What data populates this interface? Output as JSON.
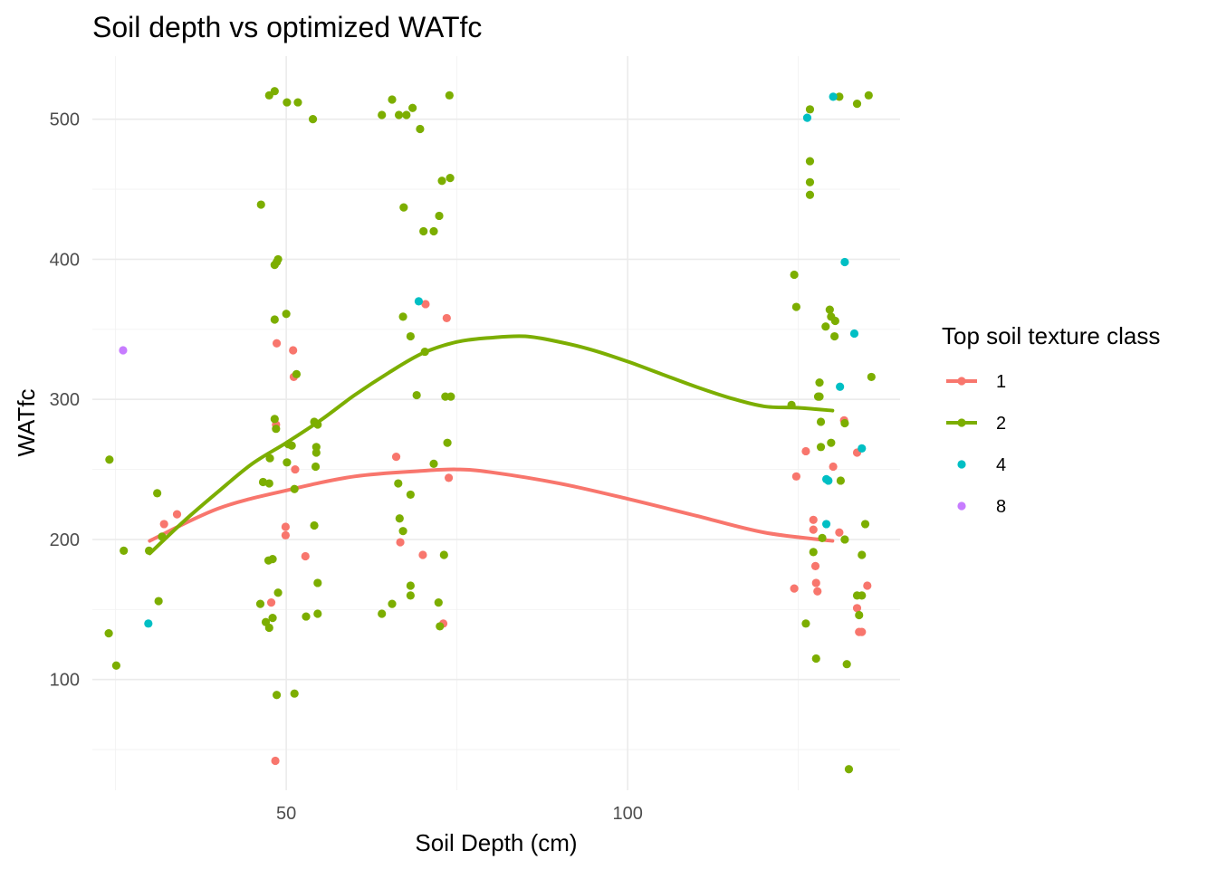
{
  "chart_data": {
    "type": "scatter",
    "title": "Soil depth vs optimized WATfc",
    "xlabel": "Soil Depth (cm)",
    "ylabel": "WATfc",
    "xlim": [
      21.6,
      139.9
    ],
    "ylim": [
      21,
      545
    ],
    "x_ticks": [
      50,
      100
    ],
    "x_minor_ticks": [
      25,
      75,
      125
    ],
    "y_ticks": [
      100,
      200,
      300,
      400,
      500
    ],
    "y_minor_ticks": [
      50,
      150,
      250,
      350,
      450
    ],
    "grid": true,
    "legend": {
      "title": "Top soil texture class",
      "placement": "right",
      "entries": [
        {
          "label": "1",
          "color": "#F8766D",
          "smooth": true
        },
        {
          "label": "2",
          "color": "#7CAE00",
          "smooth": true
        },
        {
          "label": "4",
          "color": "#00BFC4",
          "smooth": false
        },
        {
          "label": "8",
          "color": "#C77CFF",
          "smooth": false
        }
      ]
    },
    "series": [
      {
        "name": "1",
        "color": "#F8766D",
        "points": [
          [
            32.1,
            211
          ],
          [
            34.0,
            218
          ],
          [
            47.8,
            155
          ],
          [
            48.6,
            340
          ],
          [
            48.5,
            282
          ],
          [
            48.4,
            42
          ],
          [
            49.9,
            209
          ],
          [
            49.9,
            203
          ],
          [
            51.0,
            335
          ],
          [
            51.1,
            316
          ],
          [
            51.3,
            250
          ],
          [
            52.8,
            188
          ],
          [
            66.1,
            259
          ],
          [
            66.7,
            198
          ],
          [
            70.0,
            189
          ],
          [
            70.4,
            368
          ],
          [
            73.5,
            358
          ],
          [
            73.0,
            140
          ],
          [
            73.8,
            244
          ],
          [
            124.7,
            245
          ],
          [
            124.4,
            165
          ],
          [
            126.1,
            263
          ],
          [
            127.2,
            214
          ],
          [
            127.2,
            207
          ],
          [
            127.5,
            181
          ],
          [
            127.6,
            169
          ],
          [
            127.8,
            163
          ],
          [
            130.1,
            252
          ],
          [
            131.0,
            205
          ],
          [
            131.7,
            285
          ],
          [
            133.6,
            151
          ],
          [
            133.9,
            134
          ],
          [
            134.3,
            134
          ],
          [
            135.1,
            167
          ],
          [
            133.6,
            262
          ]
        ],
        "smooth": [
          [
            30,
            199
          ],
          [
            40,
            222
          ],
          [
            50,
            235
          ],
          [
            60,
            245
          ],
          [
            70,
            249
          ],
          [
            75,
            250
          ],
          [
            80,
            248
          ],
          [
            90,
            240
          ],
          [
            100,
            229
          ],
          [
            110,
            217
          ],
          [
            120,
            205
          ],
          [
            130,
            199
          ]
        ]
      },
      {
        "name": "2",
        "color": "#7CAE00",
        "points": [
          [
            24.1,
            257
          ],
          [
            24.0,
            133
          ],
          [
            25.1,
            110
          ],
          [
            26.2,
            192
          ],
          [
            29.9,
            192
          ],
          [
            31.1,
            233
          ],
          [
            31.3,
            156
          ],
          [
            31.8,
            202
          ],
          [
            46.3,
            439
          ],
          [
            47.5,
            517
          ],
          [
            48.3,
            520
          ],
          [
            48.3,
            357
          ],
          [
            48.3,
            396
          ],
          [
            48.6,
            398
          ],
          [
            48.8,
            400
          ],
          [
            46.6,
            241
          ],
          [
            47.5,
            240
          ],
          [
            47.4,
            185
          ],
          [
            48.0,
            186
          ],
          [
            48.3,
            286
          ],
          [
            48.5,
            279
          ],
          [
            48.0,
            144
          ],
          [
            47.0,
            141
          ],
          [
            47.5,
            137
          ],
          [
            48.8,
            162
          ],
          [
            46.2,
            154
          ],
          [
            48.6,
            89
          ],
          [
            50.1,
            512
          ],
          [
            50.0,
            361
          ],
          [
            50.3,
            268
          ],
          [
            50.8,
            267
          ],
          [
            51.2,
            236
          ],
          [
            51.5,
            318
          ],
          [
            50.1,
            255
          ],
          [
            51.7,
            512
          ],
          [
            47.6,
            258
          ],
          [
            51.2,
            90
          ],
          [
            52.9,
            145
          ],
          [
            53.9,
            500
          ],
          [
            54.1,
            284
          ],
          [
            54.4,
            266
          ],
          [
            54.6,
            282
          ],
          [
            54.4,
            262
          ],
          [
            54.3,
            252
          ],
          [
            54.1,
            210
          ],
          [
            54.6,
            169
          ],
          [
            54.6,
            147
          ],
          [
            64.0,
            503
          ],
          [
            65.5,
            514
          ],
          [
            66.5,
            503
          ],
          [
            67.6,
            503
          ],
          [
            68.5,
            508
          ],
          [
            69.6,
            493
          ],
          [
            67.2,
            437
          ],
          [
            70.1,
            420
          ],
          [
            71.6,
            420
          ],
          [
            72.4,
            431
          ],
          [
            72.8,
            456
          ],
          [
            74.0,
            458
          ],
          [
            73.9,
            517
          ],
          [
            67.1,
            359
          ],
          [
            68.2,
            345
          ],
          [
            70.3,
            334
          ],
          [
            69.1,
            303
          ],
          [
            66.4,
            240
          ],
          [
            68.2,
            232
          ],
          [
            66.6,
            215
          ],
          [
            67.1,
            206
          ],
          [
            68.2,
            160
          ],
          [
            68.2,
            167
          ],
          [
            65.5,
            154
          ],
          [
            64.0,
            147
          ],
          [
            72.3,
            155
          ],
          [
            72.5,
            138
          ],
          [
            73.1,
            189
          ],
          [
            71.6,
            254
          ],
          [
            73.6,
            269
          ],
          [
            73.3,
            302
          ],
          [
            74.1,
            302
          ],
          [
            124.0,
            296
          ],
          [
            124.4,
            389
          ],
          [
            124.7,
            366
          ],
          [
            126.7,
            507
          ],
          [
            126.7,
            470
          ],
          [
            126.7,
            455
          ],
          [
            126.7,
            446
          ],
          [
            126.1,
            140
          ],
          [
            127.2,
            191
          ],
          [
            127.6,
            115
          ],
          [
            127.9,
            302
          ],
          [
            128.1,
            312
          ],
          [
            128.3,
            284
          ],
          [
            128.3,
            266
          ],
          [
            128.5,
            201
          ],
          [
            129.0,
            352
          ],
          [
            129.6,
            364
          ],
          [
            129.8,
            359
          ],
          [
            130.3,
            345
          ],
          [
            130.4,
            356
          ],
          [
            131.0,
            516
          ],
          [
            131.2,
            242
          ],
          [
            131.8,
            200
          ],
          [
            132.1,
            111
          ],
          [
            132.4,
            36
          ],
          [
            133.6,
            511
          ],
          [
            133.9,
            146
          ],
          [
            133.6,
            160
          ],
          [
            134.3,
            160
          ],
          [
            134.8,
            211
          ],
          [
            134.3,
            189
          ],
          [
            135.3,
            517
          ],
          [
            135.7,
            316
          ],
          [
            129.8,
            269
          ],
          [
            131.8,
            283
          ],
          [
            128.1,
            302
          ]
        ],
        "smooth": [
          [
            30,
            190
          ],
          [
            35,
            213
          ],
          [
            40,
            234
          ],
          [
            45,
            254
          ],
          [
            50,
            269
          ],
          [
            55,
            285
          ],
          [
            60,
            303
          ],
          [
            65,
            319
          ],
          [
            70,
            333
          ],
          [
            75,
            341
          ],
          [
            80,
            344
          ],
          [
            85,
            345
          ],
          [
            90,
            341
          ],
          [
            95,
            335
          ],
          [
            100,
            327
          ],
          [
            105,
            318
          ],
          [
            110,
            309
          ],
          [
            115,
            301
          ],
          [
            120,
            295
          ],
          [
            125,
            294
          ],
          [
            130,
            292
          ]
        ]
      },
      {
        "name": "4",
        "color": "#00BFC4",
        "points": [
          [
            29.8,
            140
          ],
          [
            69.4,
            370
          ],
          [
            126.3,
            501
          ],
          [
            129.1,
            243
          ],
          [
            129.4,
            242
          ],
          [
            129.1,
            211
          ],
          [
            130.1,
            516
          ],
          [
            131.1,
            309
          ],
          [
            131.8,
            398
          ],
          [
            133.2,
            347
          ],
          [
            134.3,
            265
          ]
        ]
      },
      {
        "name": "8",
        "color": "#C77CFF",
        "points": [
          [
            26.1,
            335
          ]
        ]
      }
    ]
  }
}
